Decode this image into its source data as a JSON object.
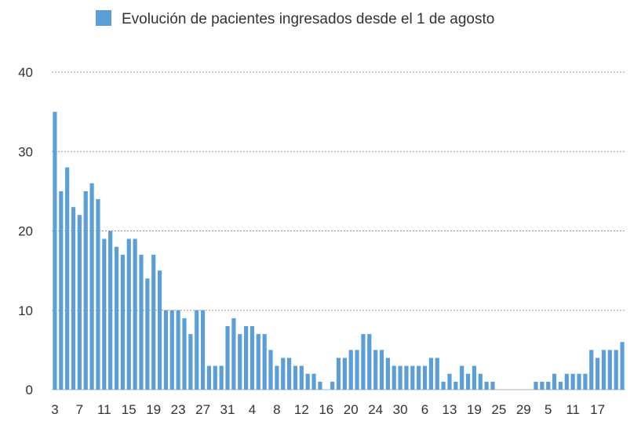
{
  "chart_data": {
    "type": "bar",
    "legend": {
      "label": "Evolución de pacientes ingresados desde el 1 de agosto",
      "placement": "top"
    },
    "colors": {
      "bar": "#5b9fd6",
      "grid": "#9a9a9a"
    },
    "ylim": [
      0,
      40
    ],
    "yticks": [
      0,
      10,
      20,
      30,
      40
    ],
    "grid": true,
    "xtick_labels": [
      "3",
      "7",
      "11",
      "15",
      "19",
      "23",
      "27",
      "31",
      "4",
      "8",
      "12",
      "16",
      "20",
      "24",
      "30",
      "6",
      "13",
      "19",
      "25",
      "29",
      "5",
      "11",
      "17"
    ],
    "xtick_positions": [
      0,
      4,
      8,
      12,
      16,
      20,
      24,
      28,
      32,
      36,
      40,
      44,
      48,
      52,
      56,
      60,
      64,
      68,
      72,
      76,
      80,
      84,
      88
    ],
    "values": [
      35,
      25,
      28,
      23,
      22,
      25,
      26,
      24,
      19,
      20,
      18,
      17,
      19,
      19,
      17,
      14,
      17,
      15,
      10,
      10,
      10,
      9,
      7,
      10,
      10,
      3,
      3,
      3,
      8,
      9,
      7,
      8,
      8,
      7,
      7,
      5,
      3,
      4,
      4,
      3,
      3,
      2,
      2,
      1,
      0,
      1,
      4,
      4,
      5,
      5,
      7,
      7,
      5,
      5,
      4,
      3,
      3,
      3,
      3,
      3,
      3,
      4,
      4,
      1,
      2,
      1,
      3,
      2,
      3,
      2,
      1,
      1,
      0,
      0,
      0,
      0,
      0,
      0,
      1,
      1,
      1,
      2,
      1,
      2,
      2,
      2,
      2,
      5,
      4,
      5,
      5,
      5,
      6
    ]
  }
}
